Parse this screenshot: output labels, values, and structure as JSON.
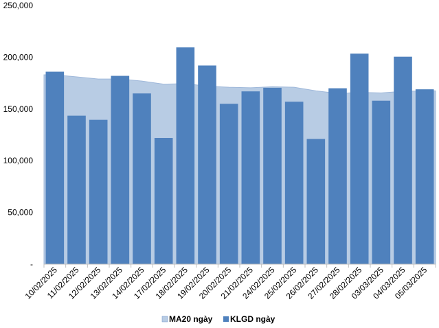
{
  "chart_data": {
    "type": "bar",
    "categories": [
      "10/02/2025",
      "11/02/2025",
      "12/02/2025",
      "13/02/2025",
      "14/02/2025",
      "17/02/2025",
      "18/02/2025",
      "19/02/2025",
      "20/02/2025",
      "21/02/2025",
      "24/02/2025",
      "25/02/2025",
      "26/02/2025",
      "27/02/2025",
      "28/02/2025",
      "03/03/2025",
      "04/03/2025",
      "05/03/2025"
    ],
    "series": [
      {
        "name": "MA20 ngày",
        "kind": "area",
        "color": "#b8cce4",
        "values": [
          183000,
          181000,
          179000,
          179000,
          177000,
          174000,
          174500,
          172000,
          171000,
          170500,
          171500,
          171000,
          167500,
          165000,
          166000,
          165500,
          167000,
          167500
        ]
      },
      {
        "name": "KLGD ngày",
        "kind": "bar",
        "color": "#4f81bd",
        "values": [
          186000,
          143500,
          139500,
          182000,
          165000,
          122000,
          209500,
          192000,
          155000,
          167000,
          170500,
          157000,
          121000,
          170000,
          203500,
          158000,
          200500,
          169000
        ]
      }
    ],
    "yticks": [
      "-",
      "50,000",
      "100,000",
      "150,000",
      "200,000",
      "250,000"
    ],
    "ylim": [
      0,
      250000
    ],
    "title": "",
    "xlabel": "",
    "ylabel": "",
    "legend_position": "bottom",
    "grid": false
  }
}
